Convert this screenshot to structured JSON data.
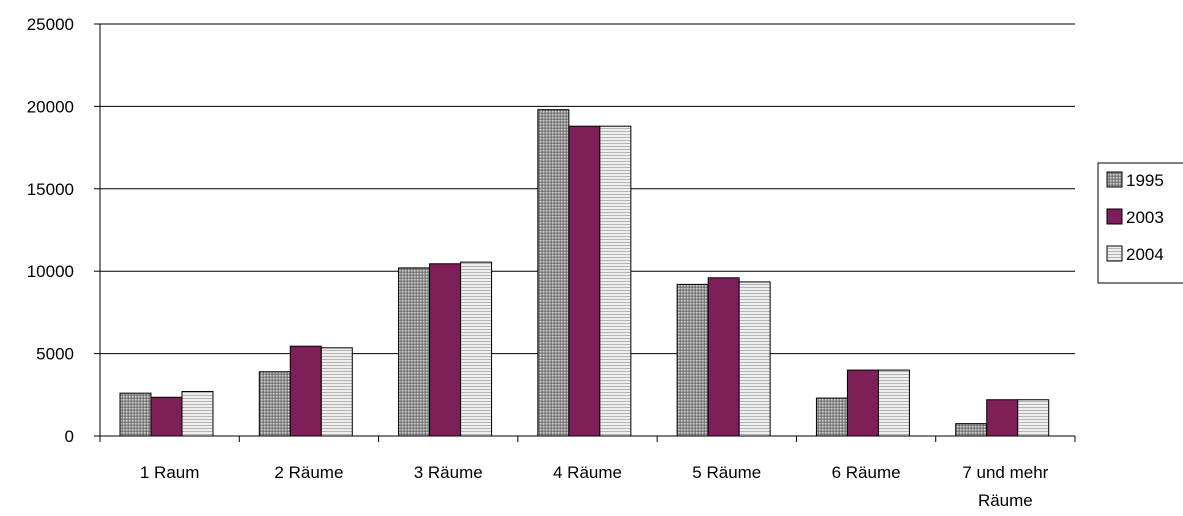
{
  "chart_data": {
    "type": "bar",
    "title": "",
    "xlabel": "",
    "ylabel": "",
    "ylim": [
      0,
      25000
    ],
    "yticks": [
      0,
      5000,
      10000,
      15000,
      20000,
      25000
    ],
    "grid": "horizontal",
    "legend_position": "right",
    "categories": [
      [
        "1 Raum"
      ],
      [
        "2 Räume"
      ],
      [
        "3 Räume"
      ],
      [
        "4 Räume"
      ],
      [
        "5 Räume"
      ],
      [
        "6 Räume"
      ],
      [
        "7 und mehr",
        "Räume"
      ]
    ],
    "series": [
      {
        "name": "1995",
        "color": "#b0b0b0",
        "pattern": "dots-gray",
        "values": [
          2600,
          3900,
          10200,
          19800,
          9200,
          2300,
          750
        ]
      },
      {
        "name": "2003",
        "color": "#7f1f5a",
        "pattern": "solid",
        "values": [
          2350,
          5450,
          10450,
          18800,
          9600,
          4000,
          2200
        ]
      },
      {
        "name": "2004",
        "color": "#e3e3e3",
        "pattern": "lines-light",
        "values": [
          2700,
          5350,
          10550,
          18800,
          9350,
          4000,
          2200
        ]
      }
    ]
  }
}
